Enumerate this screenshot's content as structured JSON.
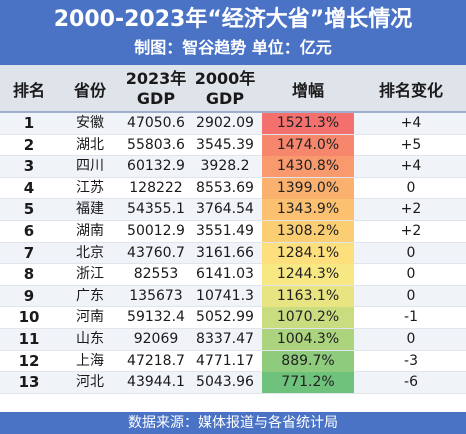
{
  "header": {
    "title": "2000-2023年“经济大省”增长情况",
    "subtitle": "制图：智谷趋势   单位：亿元"
  },
  "columns": {
    "rank": "排名",
    "province": "省份",
    "gdp2023_line1": "2023年",
    "gdp2023_line2": "GDP",
    "gdp2000_line1": "2000年",
    "gdp2000_line2": "GDP",
    "increase": "增幅",
    "rank_change": "排名变化"
  },
  "rows": [
    {
      "rank": "1",
      "province": "安徽",
      "gdp2023": "47050.6",
      "gdp2000": "2902.09",
      "increase": "1521.3%",
      "change": "+4"
    },
    {
      "rank": "2",
      "province": "湖北",
      "gdp2023": "55803.6",
      "gdp2000": "3545.39",
      "increase": "1474.0%",
      "change": "+5"
    },
    {
      "rank": "3",
      "province": "四川",
      "gdp2023": "60132.9",
      "gdp2000": "3928.2",
      "increase": "1430.8%",
      "change": "+4"
    },
    {
      "rank": "4",
      "province": "江苏",
      "gdp2023": "128222",
      "gdp2000": "8553.69",
      "increase": "1399.0%",
      "change": "0"
    },
    {
      "rank": "5",
      "province": "福建",
      "gdp2023": "54355.1",
      "gdp2000": "3764.54",
      "increase": "1343.9%",
      "change": "+2"
    },
    {
      "rank": "6",
      "province": "湖南",
      "gdp2023": "50012.9",
      "gdp2000": "3551.49",
      "increase": "1308.2%",
      "change": "+2"
    },
    {
      "rank": "7",
      "province": "北京",
      "gdp2023": "43760.7",
      "gdp2000": "3161.66",
      "increase": "1284.1%",
      "change": "0"
    },
    {
      "rank": "8",
      "province": "浙江",
      "gdp2023": "82553",
      "gdp2000": "6141.03",
      "increase": "1244.3%",
      "change": "0"
    },
    {
      "rank": "9",
      "province": "广东",
      "gdp2023": "135673",
      "gdp2000": "10741.3",
      "increase": "1163.1%",
      "change": "0"
    },
    {
      "rank": "10",
      "province": "河南",
      "gdp2023": "59132.4",
      "gdp2000": "5052.99",
      "increase": "1070.2%",
      "change": "-1"
    },
    {
      "rank": "11",
      "province": "山东",
      "gdp2023": "92069",
      "gdp2000": "8337.47",
      "increase": "1004.3%",
      "change": "0"
    },
    {
      "rank": "12",
      "province": "上海",
      "gdp2023": "47218.7",
      "gdp2000": "4771.17",
      "increase": "889.7%",
      "change": "-3"
    },
    {
      "rank": "13",
      "province": "河北",
      "gdp2023": "43944.1",
      "gdp2000": "5043.96",
      "increase": "771.2%",
      "change": "-6"
    }
  ],
  "increase_colors": [
    "#f4706e",
    "#f7876c",
    "#f89a6d",
    "#fab06f",
    "#fbc171",
    "#fcce73",
    "#fde07d",
    "#f8e884",
    "#e8e482",
    "#c9dd80",
    "#acd47e",
    "#8ecb7c",
    "#6fc27b"
  ],
  "footer": {
    "source": "数据来源：媒体报道与各省统计局"
  }
}
